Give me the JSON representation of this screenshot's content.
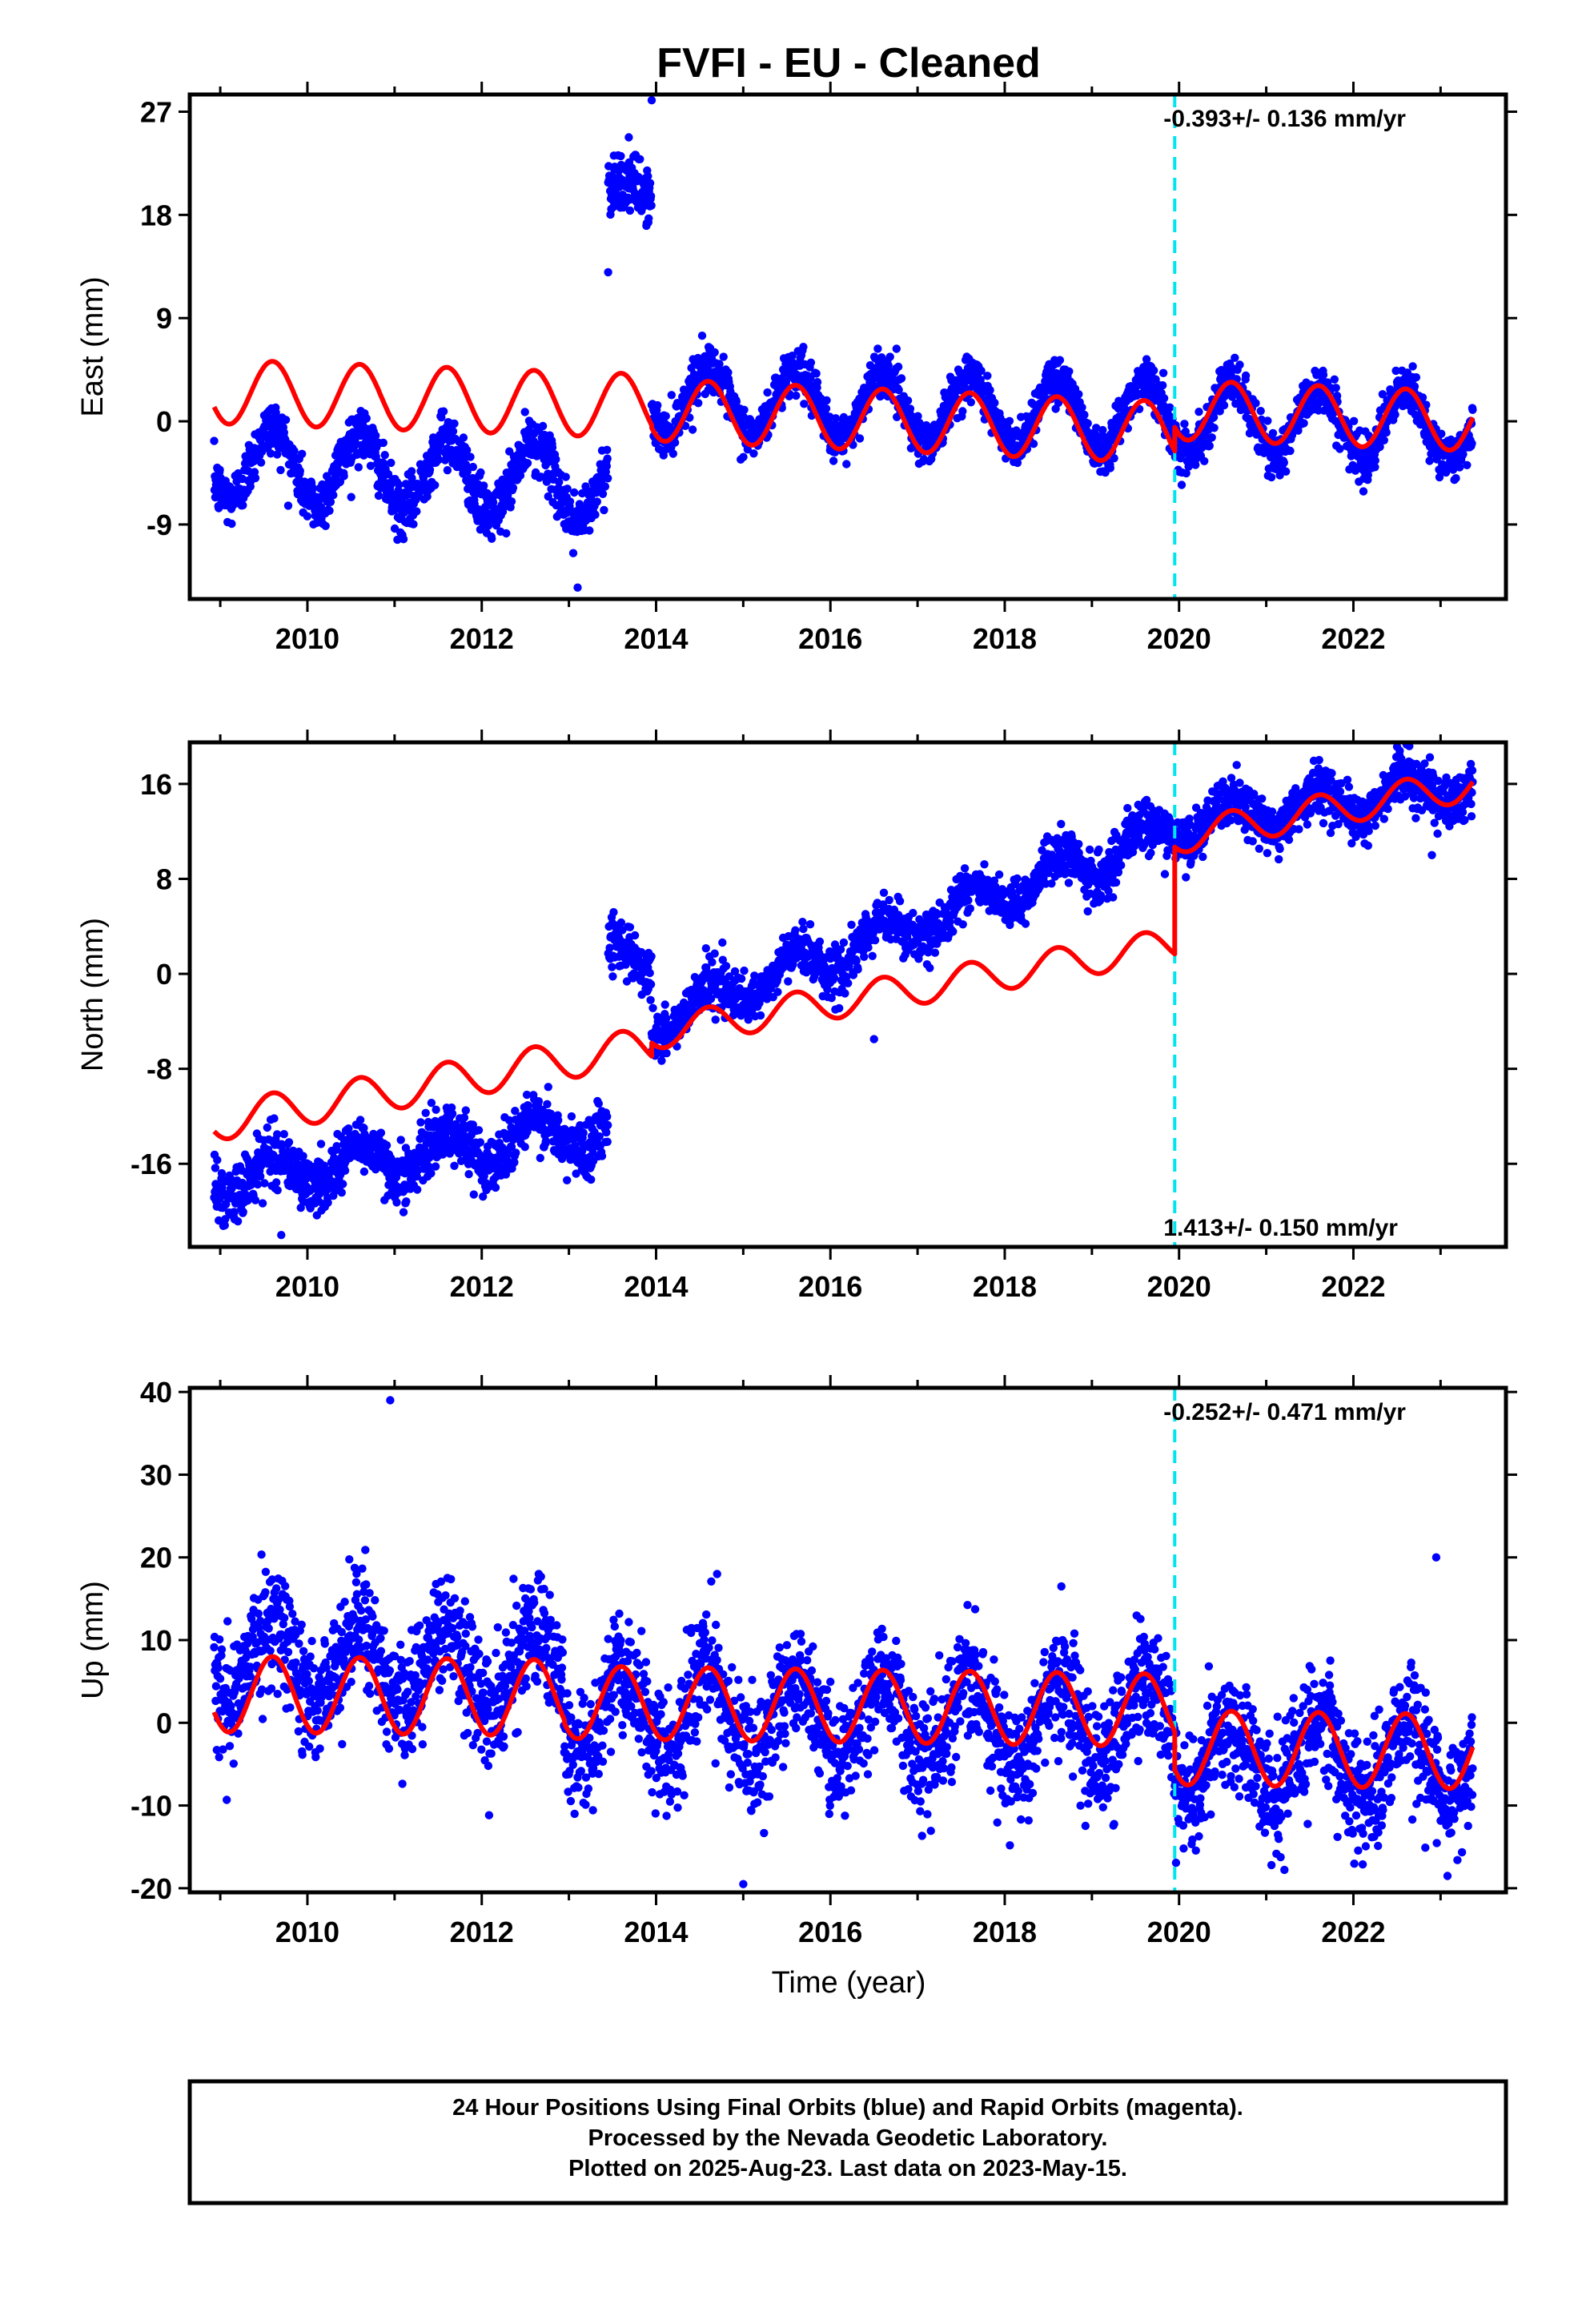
{
  "title": "FVFI  - EU - Cleaned",
  "colors": {
    "observations": "#0000ff",
    "model": "#ff0000",
    "offset_marker": "#00e5ee",
    "frame": "#000000"
  },
  "x_axis_label": "Time (year)",
  "footer": {
    "line1": "24 Hour Positions Using Final Orbits (blue) and Rapid Orbits (magenta).",
    "line2": "Processed by the Nevada Geodetic Laboratory.",
    "line3": "Plotted on 2025-Aug-23. Last data on 2023-May-15."
  },
  "chart_data": [
    {
      "type": "scatter",
      "component": "east",
      "ylabel": "East (mm)",
      "rate_text": "-0.393+/- 0.136 mm/yr",
      "rate_position": "top-right",
      "xlim": [
        2008.65,
        2023.75
      ],
      "ylim": [
        -15.5,
        28.5
      ],
      "xticks": [
        2010,
        2012,
        2014,
        2016,
        2018,
        2020,
        2022
      ],
      "yticks": [
        -9,
        0,
        9,
        18,
        27
      ],
      "offset_epoch": 2019.95,
      "data_range": [
        2008.93,
        2023.37
      ],
      "observations": {
        "description": "daily positions (blue dots)",
        "segments": [
          {
            "from": 2008.93,
            "to": 2013.45,
            "level_start": -3.5,
            "level_end": -5.5,
            "annual_amplitude": 3.2,
            "scatter": 1.2
          },
          {
            "from": 2013.45,
            "to": 2013.95,
            "level_start": 20.0,
            "level_end": 20.0,
            "annual_amplitude": 1.0,
            "scatter": 1.3
          },
          {
            "from": 2013.95,
            "to": 2023.37,
            "level_start": 2.0,
            "level_end": -0.5,
            "annual_amplitude": 3.0,
            "scatter": 1.0
          }
        ],
        "outliers": [
          {
            "x": 2013.1,
            "y": -14.5
          },
          {
            "x": 2013.45,
            "y": 13.0
          },
          {
            "x": 2013.95,
            "y": 28.0
          },
          {
            "x": 2013.05,
            "y": -11.5
          }
        ]
      },
      "model": {
        "description": "fitted trajectory model (red line)",
        "segments": [
          {
            "from": 2008.93,
            "to": 2013.95,
            "level_start": 2.6,
            "level_end": 1.3,
            "annual_amplitude": 2.8
          },
          {
            "from": 2013.95,
            "to": 2019.95,
            "level_start": 1.0,
            "level_end": -1.0,
            "annual_amplitude": 2.7
          },
          {
            "from": 2019.95,
            "to": 2023.37,
            "level_start": 1.0,
            "level_end": 0.0,
            "annual_amplitude": 2.6
          }
        ]
      }
    },
    {
      "type": "scatter",
      "component": "north",
      "ylabel": "North (mm)",
      "rate_text": "1.413+/- 0.150 mm/yr",
      "rate_position": "bottom-right",
      "xlim": [
        2008.65,
        2023.75
      ],
      "ylim": [
        -23.0,
        19.5
      ],
      "xticks": [
        2010,
        2012,
        2014,
        2016,
        2018,
        2020,
        2022
      ],
      "yticks": [
        -16,
        -8,
        0,
        8,
        16
      ],
      "offset_epoch": 2019.95,
      "data_range": [
        2008.93,
        2023.37
      ],
      "observations": {
        "description": "daily positions (blue dots)",
        "segments": [
          {
            "from": 2008.93,
            "to": 2013.45,
            "level_start": -17.5,
            "level_end": -13.0,
            "annual_amplitude": 1.6,
            "scatter": 1.2
          },
          {
            "from": 2013.45,
            "to": 2013.95,
            "level_start": 2.5,
            "level_end": 0.0,
            "annual_amplitude": 0.8,
            "scatter": 1.2
          },
          {
            "from": 2013.95,
            "to": 2019.95,
            "level_start": -4.0,
            "level_end": 12.0,
            "annual_amplitude": 1.6,
            "scatter": 1.0
          },
          {
            "from": 2019.95,
            "to": 2023.37,
            "level_start": 12.5,
            "level_end": 16.0,
            "annual_amplitude": 1.5,
            "scatter": 1.0
          }
        ],
        "outliers": [
          {
            "x": 2009.7,
            "y": -22.0
          },
          {
            "x": 2016.5,
            "y": -5.5
          },
          {
            "x": 2022.9,
            "y": 10.0
          }
        ]
      },
      "model": {
        "description": "fitted trajectory model (red line)",
        "segments": [
          {
            "from": 2008.93,
            "to": 2013.95,
            "level_start": -12.5,
            "level_end": -6.0,
            "annual_amplitude": 1.6
          },
          {
            "from": 2013.95,
            "to": 2019.95,
            "level_start": -5.0,
            "level_end": 2.5,
            "annual_amplitude": 1.4
          },
          {
            "from": 2019.95,
            "to": 2023.37,
            "level_start": 11.5,
            "level_end": 16.0,
            "annual_amplitude": 1.4
          }
        ]
      }
    },
    {
      "type": "scatter",
      "component": "up",
      "ylabel": "Up (mm)",
      "rate_text": "-0.252+/- 0.471 mm/yr",
      "rate_position": "top-right",
      "xlim": [
        2008.65,
        2023.75
      ],
      "ylim": [
        -20.5,
        40.5
      ],
      "xticks": [
        2010,
        2012,
        2014,
        2016,
        2018,
        2020,
        2022
      ],
      "yticks": [
        -20,
        -10,
        0,
        10,
        20,
        30,
        40
      ],
      "offset_epoch": 2019.95,
      "data_range": [
        2008.93,
        2023.37
      ],
      "observations": {
        "description": "daily positions (blue dots)",
        "segments": [
          {
            "from": 2008.93,
            "to": 2012.95,
            "level_start": 8.0,
            "level_end": 6.0,
            "annual_amplitude": 5.0,
            "scatter": 3.5
          },
          {
            "from": 2012.95,
            "to": 2019.95,
            "level_start": 1.0,
            "level_end": 0.0,
            "annual_amplitude": 5.0,
            "scatter": 3.5
          },
          {
            "from": 2019.95,
            "to": 2023.37,
            "level_start": -4.5,
            "level_end": -4.5,
            "annual_amplitude": 4.5,
            "scatter": 3.5
          }
        ],
        "outliers": [
          {
            "x": 2010.95,
            "y": 39.0
          },
          {
            "x": 2022.95,
            "y": 20.0
          },
          {
            "x": 2015.0,
            "y": -19.5
          },
          {
            "x": 2014.7,
            "y": 18.0
          },
          {
            "x": 2018.65,
            "y": 16.5
          }
        ]
      },
      "model": {
        "description": "fitted trajectory model (red line)",
        "segments": [
          {
            "from": 2008.93,
            "to": 2012.95,
            "level_start": 3.5,
            "level_end": 3.0,
            "annual_amplitude": 4.6
          },
          {
            "from": 2012.95,
            "to": 2019.95,
            "level_start": 2.5,
            "level_end": 1.5,
            "annual_amplitude": 4.4
          },
          {
            "from": 2019.95,
            "to": 2023.37,
            "level_start": -3.0,
            "level_end": -3.5,
            "annual_amplitude": 4.5
          }
        ]
      }
    }
  ]
}
